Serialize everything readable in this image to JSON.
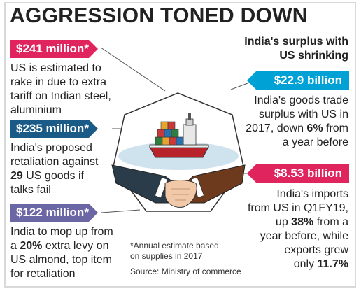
{
  "title": "AGGRESSION TONED DOWN",
  "subtitle_line1": "India's surplus with",
  "subtitle_line2": "US shrinking",
  "colors": {
    "pink": "#e0245e",
    "navy": "#1a5a86",
    "purple": "#6b66a4",
    "teal": "#00a2d6"
  },
  "items": [
    {
      "amount": "$241 million*",
      "lines": [
        "US is estimated to",
        "rake in due to extra",
        "tariff on Indian steel,",
        "aluminium"
      ]
    },
    {
      "amount": "$235 million*",
      "l1": "India's proposed",
      "l2": "retaliation against",
      "l3_bold": "29",
      "l3_rest": " US goods if",
      "l4": "talks fail"
    },
    {
      "amount": "$122 million*",
      "l1": "India to mop up from",
      "l2_pre": "a ",
      "l2_bold": "20%",
      "l2_rest": " extra levy on",
      "l3": "US almond, top item",
      "l4": "for retaliation"
    },
    {
      "amount": "$22.9 billion",
      "l1": "India's goods trade",
      "l2": "surplus with US in",
      "l3_pre": "2017, down ",
      "l3_bold": "6%",
      "l3_rest": " from",
      "l4": "a year before"
    },
    {
      "amount": "$8.53 billion",
      "l1": "India's imports",
      "l2": "from US in Q1FY19,",
      "l3_pre": "up ",
      "l3_bold": "38%",
      "l3_rest": " from a",
      "l4": "year before, while",
      "l5": "exports grew",
      "l6_pre": "only ",
      "l6_bold": "11.7%"
    }
  ],
  "note_line1": "*Annual estimate based",
  "note_line2": "on supplies in 2017",
  "source": "Source: Ministry of commerce"
}
